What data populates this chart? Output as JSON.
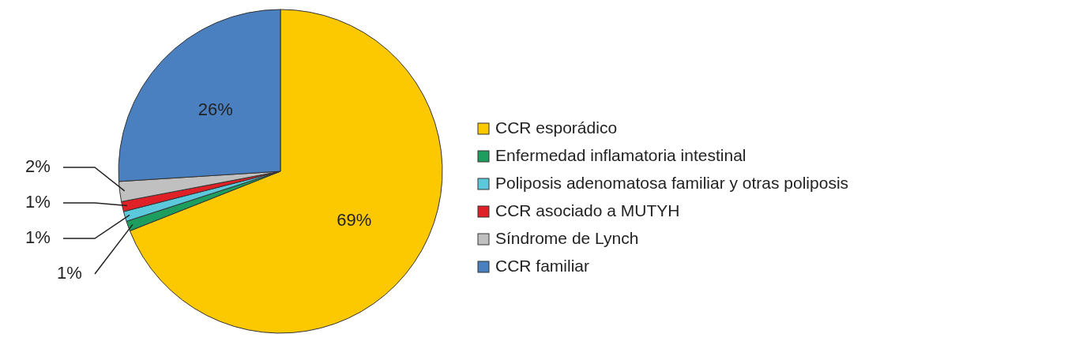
{
  "chart_data": {
    "type": "pie",
    "categories": [
      "CCR esporádico",
      "Enfermedad inflamatoria intestinal",
      "Poliposis adenomatosa familiar y otras poliposis",
      "CCR asociado a MUTYH",
      "Síndrome de Lynch",
      "CCR familiar"
    ],
    "values": [
      69,
      1,
      1,
      1,
      2,
      26
    ],
    "colors": [
      "#fcc800",
      "#1e9e5e",
      "#5bc8dc",
      "#e02027",
      "#c0c0c0",
      "#4a7fc0"
    ],
    "value_labels": [
      "69%",
      "1%",
      "1%",
      "1%",
      "2%",
      "26%"
    ],
    "legend": "right"
  }
}
